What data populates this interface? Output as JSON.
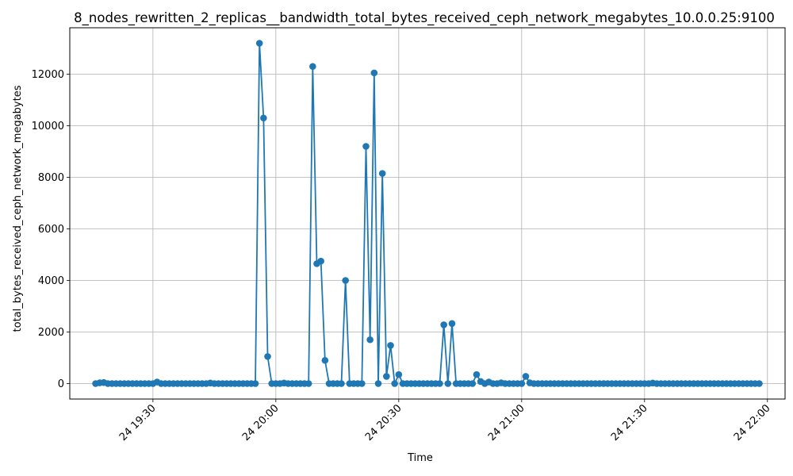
{
  "chart_data": {
    "type": "line",
    "title": "8_nodes_rewritten_2_replicas__bandwidth_total_bytes_received_ceph_network_megabytes_10.0.0.25:9100",
    "xlabel": "Time",
    "ylabel": "total_bytes_received_ceph_network_megabytes",
    "x_start": "19:16",
    "x_step_minutes": 1,
    "ylim": [
      -600,
      13800
    ],
    "grid": true,
    "marker": "circle",
    "color": "#1f77b4",
    "x_ticks": [
      {
        "label": "24 19:30",
        "minute": 1170
      },
      {
        "label": "24 20:00",
        "minute": 1200
      },
      {
        "label": "24 20:30",
        "minute": 1230
      },
      {
        "label": "24 21:00",
        "minute": 1260
      },
      {
        "label": "24 21:30",
        "minute": 1290
      },
      {
        "label": "24 22:00",
        "minute": 1320
      }
    ],
    "y_ticks": [
      0,
      2000,
      4000,
      6000,
      8000,
      10000,
      12000
    ],
    "series": [
      {
        "values": [
          0,
          30,
          40,
          0,
          0,
          0,
          0,
          0,
          0,
          0,
          0,
          0,
          0,
          0,
          0,
          60,
          0,
          0,
          0,
          0,
          0,
          0,
          0,
          0,
          0,
          0,
          0,
          0,
          20,
          0,
          0,
          0,
          0,
          0,
          0,
          0,
          0,
          0,
          0,
          0,
          13200,
          10300,
          1050,
          0,
          0,
          0,
          20,
          0,
          0,
          0,
          0,
          0,
          0,
          12300,
          4650,
          4750,
          900,
          0,
          0,
          0,
          0,
          4000,
          0,
          0,
          0,
          0,
          9200,
          1700,
          12050,
          0,
          8150,
          280,
          1480,
          0,
          350,
          0,
          0,
          0,
          0,
          0,
          0,
          0,
          0,
          0,
          0,
          2280,
          0,
          2330,
          0,
          0,
          0,
          0,
          0,
          350,
          80,
          0,
          60,
          0,
          0,
          30,
          0,
          0,
          0,
          0,
          0,
          280,
          30,
          0,
          0,
          0,
          0,
          0,
          0,
          0,
          0,
          0,
          0,
          0,
          0,
          0,
          0,
          0,
          0,
          0,
          0,
          0,
          0,
          0,
          0,
          0,
          0,
          0,
          0,
          0,
          0,
          0,
          20,
          0,
          0,
          0,
          0,
          0,
          0,
          0,
          0,
          0,
          0,
          0,
          0,
          0,
          0,
          0,
          0,
          0,
          0,
          0,
          0,
          0,
          0,
          0,
          0,
          0,
          0
        ]
      }
    ]
  }
}
